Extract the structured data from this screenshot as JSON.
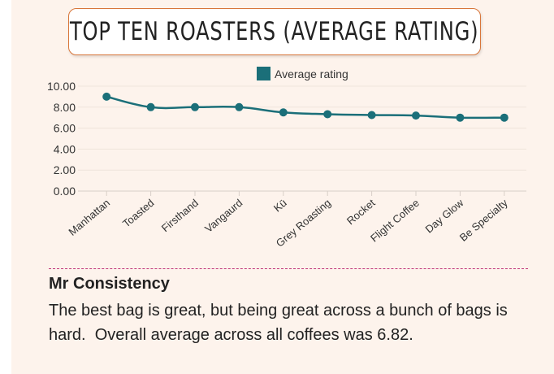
{
  "title": "TOP TEN ROASTERS (AVERAGE RATING)",
  "chart_data": {
    "type": "line",
    "categories": [
      "Manhattan",
      "Toasted",
      "Firsthand",
      "Vangaurd",
      "Kū",
      "Grey Roasting",
      "Rocket",
      "Flight Coffee",
      "Day Glow",
      "Be Specialty"
    ],
    "series": [
      {
        "name": "Average rating",
        "values": [
          9.0,
          8.0,
          8.0,
          8.0,
          7.5,
          7.33,
          7.25,
          7.2,
          7.0,
          7.0
        ],
        "color": "#1b6f79"
      }
    ],
    "ylim": [
      0,
      10
    ],
    "yticks": [
      "0.00",
      "2.00",
      "4.00",
      "6.00",
      "8.00",
      "10.00"
    ],
    "legend": "top",
    "grid": true
  },
  "summary": {
    "heading": "Mr Consistency",
    "text": "The best bag is great, but being great across a bunch of bags is hard.  Overall average across all coffees was 6.82."
  }
}
